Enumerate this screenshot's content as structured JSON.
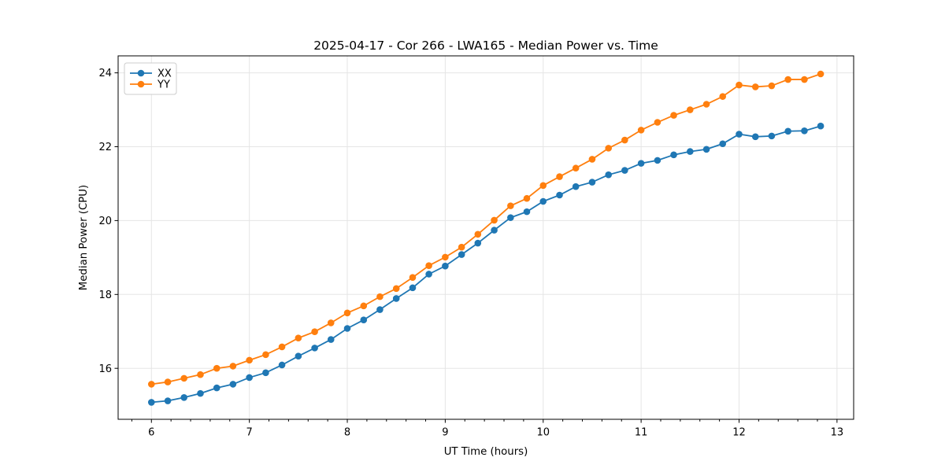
{
  "chart_data": {
    "type": "line",
    "title": "2025-04-17 - Cor 266 - LWA165 - Median Power vs. Time",
    "xlabel": "UT Time (hours)",
    "ylabel": "Median Power (CPU)",
    "xlim": [
      5.66,
      13.17
    ],
    "ylim": [
      14.62,
      24.46
    ],
    "x_ticks": [
      6,
      7,
      8,
      9,
      10,
      11,
      12,
      13
    ],
    "y_ticks": [
      16,
      18,
      20,
      22,
      24
    ],
    "x_minor_step": 0.2,
    "grid": true,
    "legend_position": "upper-left",
    "x": [
      6.0,
      6.167,
      6.333,
      6.5,
      6.667,
      6.833,
      7.0,
      7.167,
      7.333,
      7.5,
      7.667,
      7.833,
      8.0,
      8.167,
      8.333,
      8.5,
      8.667,
      8.833,
      9.0,
      9.167,
      9.333,
      9.5,
      9.667,
      9.833,
      10.0,
      10.167,
      10.333,
      10.5,
      10.667,
      10.833,
      11.0,
      11.167,
      11.333,
      11.5,
      11.667,
      11.833,
      12.0,
      12.167,
      12.333,
      12.5,
      12.667,
      12.833
    ],
    "series": [
      {
        "name": "XX",
        "color": "#1f77b4",
        "values": [
          15.08,
          15.12,
          15.21,
          15.32,
          15.47,
          15.57,
          15.75,
          15.88,
          16.09,
          16.33,
          16.55,
          16.78,
          17.08,
          17.31,
          17.59,
          17.89,
          18.18,
          18.55,
          18.77,
          19.08,
          19.39,
          19.74,
          20.08,
          20.24,
          20.52,
          20.69,
          20.92,
          21.04,
          21.24,
          21.36,
          21.55,
          21.63,
          21.78,
          21.87,
          21.93,
          22.08,
          22.34,
          22.27,
          22.29,
          22.42,
          22.43,
          22.56
        ]
      },
      {
        "name": "YY",
        "color": "#ff7f0e",
        "values": [
          15.57,
          15.63,
          15.73,
          15.83,
          16.0,
          16.06,
          16.22,
          16.37,
          16.58,
          16.82,
          16.99,
          17.23,
          17.5,
          17.69,
          17.94,
          18.16,
          18.46,
          18.78,
          19.01,
          19.28,
          19.63,
          20.01,
          20.4,
          20.6,
          20.95,
          21.19,
          21.42,
          21.66,
          21.96,
          22.18,
          22.45,
          22.66,
          22.85,
          23.0,
          23.15,
          23.36,
          23.67,
          23.62,
          23.65,
          23.82,
          23.82,
          23.97
        ]
      }
    ]
  }
}
